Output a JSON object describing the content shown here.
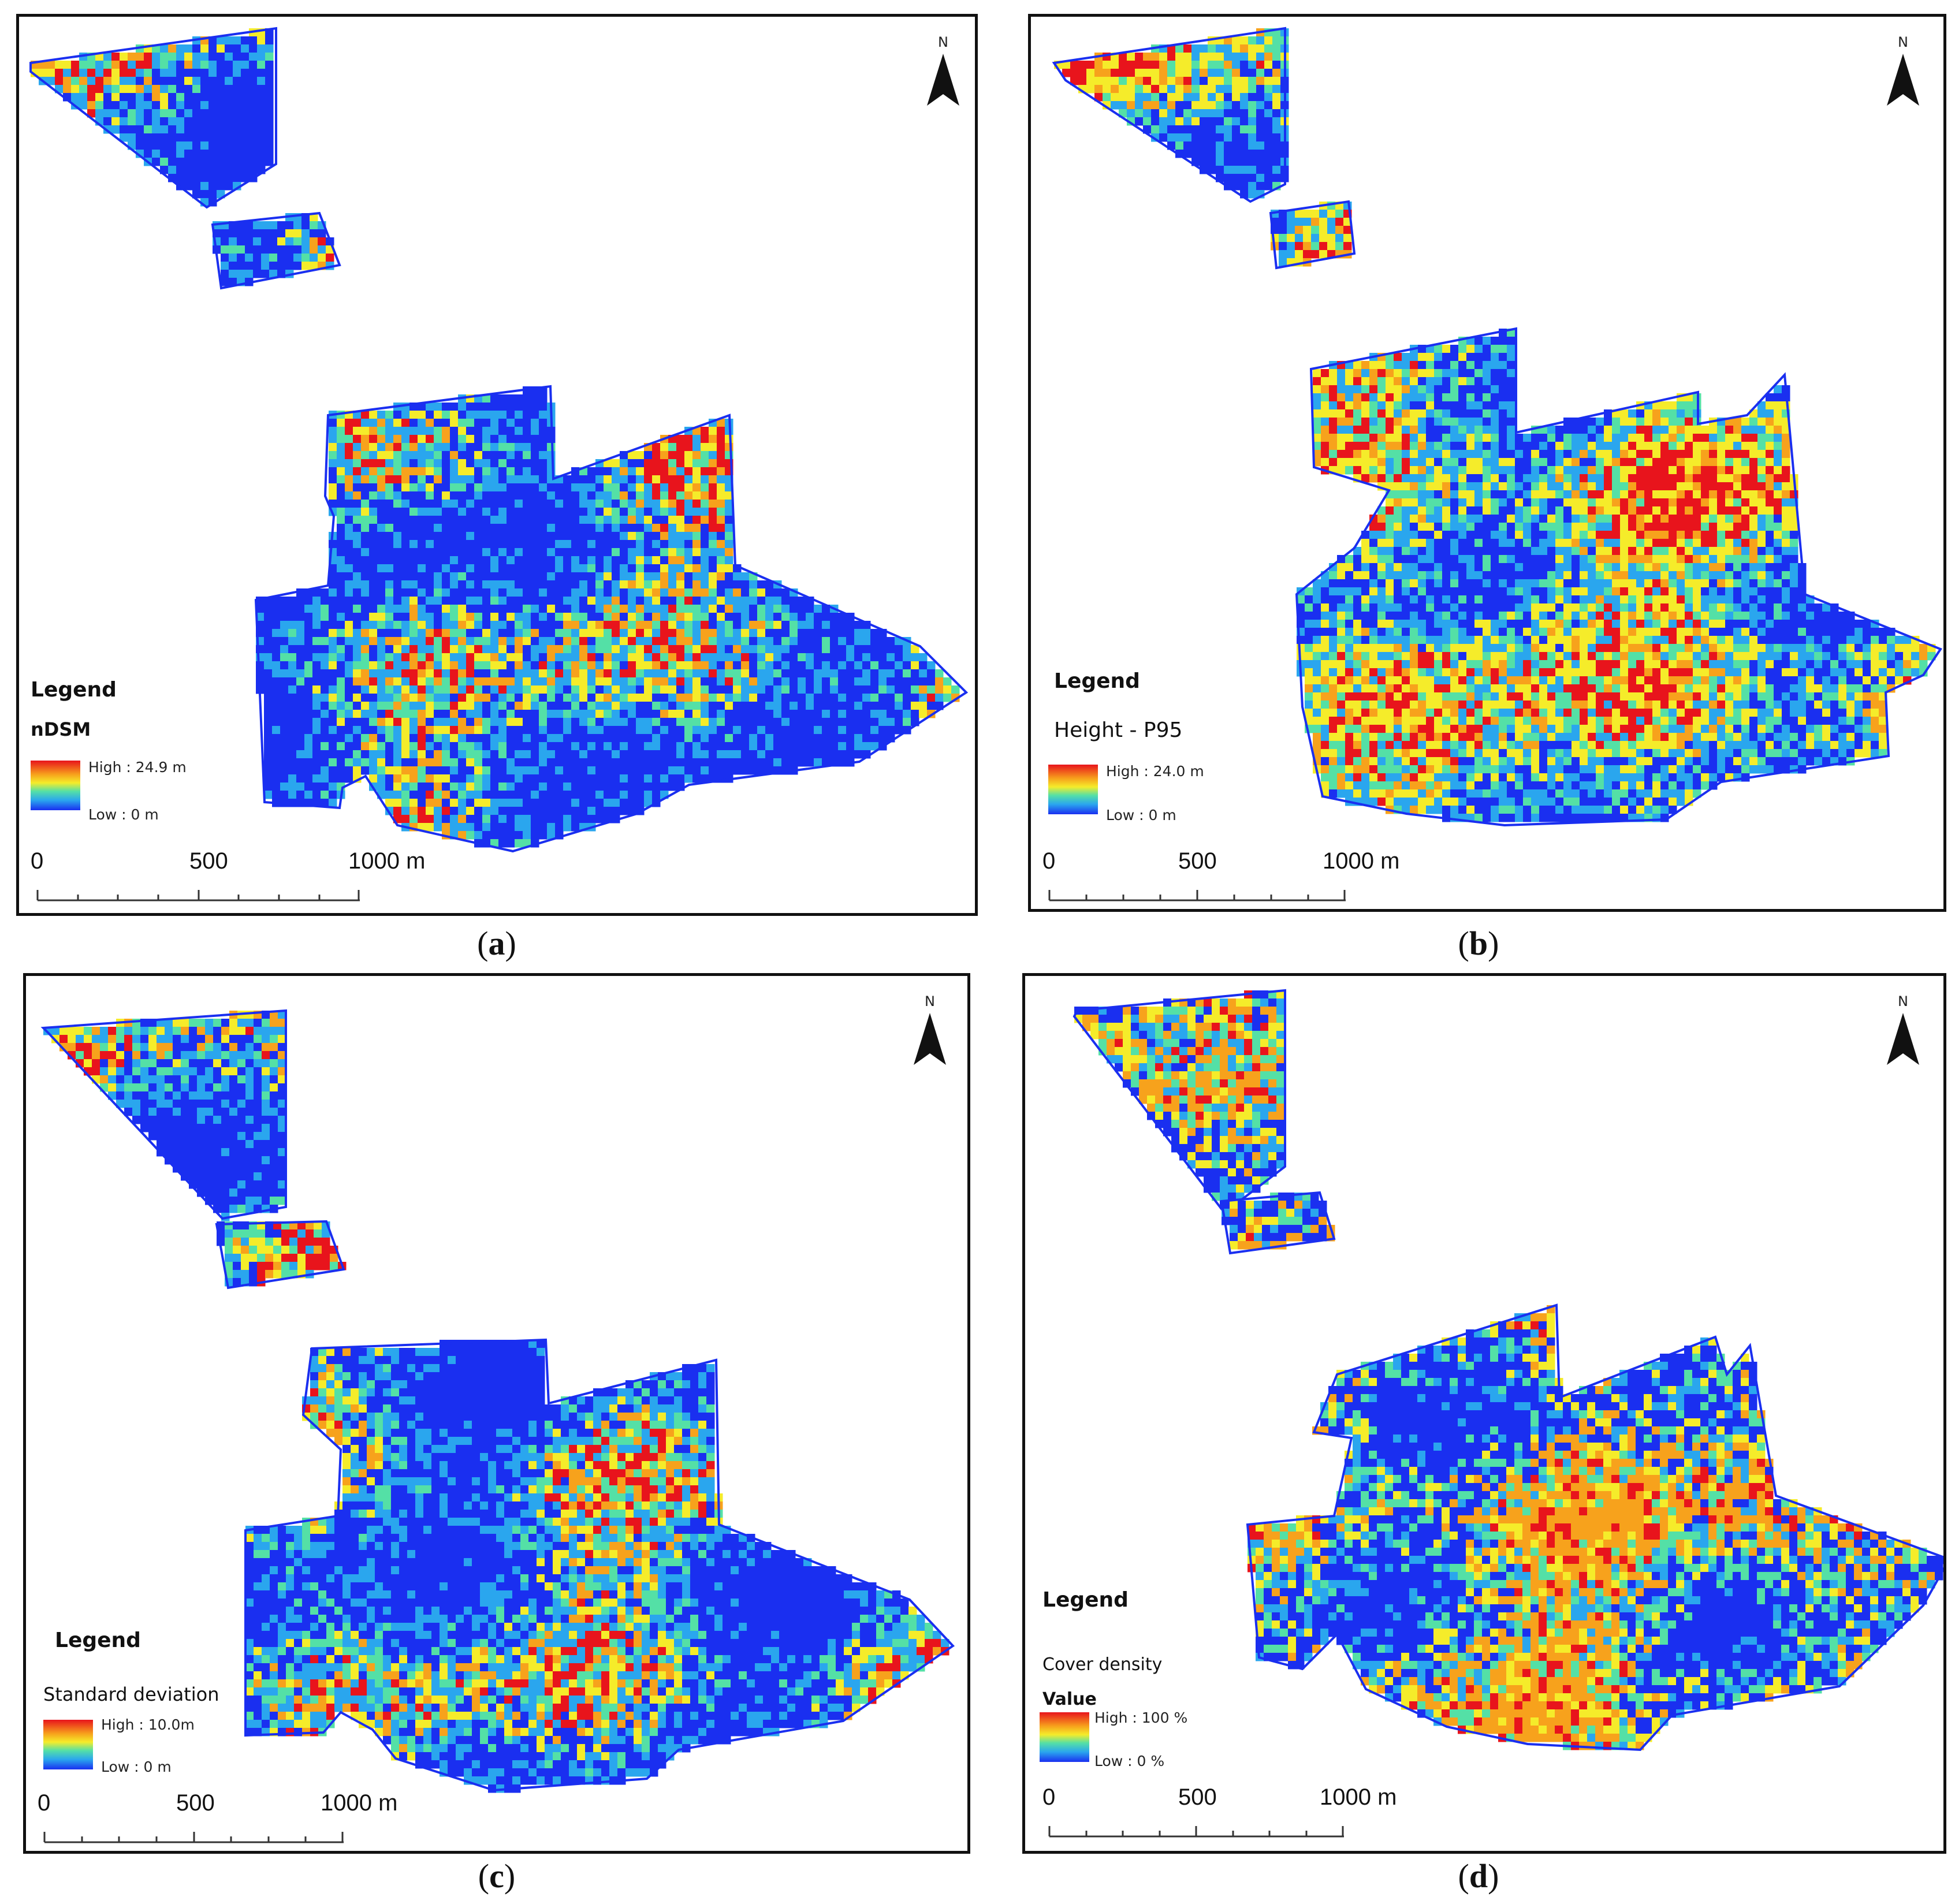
{
  "panels": [
    {
      "id": "a",
      "caption": "a",
      "legend_title": "Legend",
      "layer": "nDSM",
      "value_label": "",
      "high": "High : 24.9 m",
      "low": "Low : 0 m",
      "scale": [
        "0",
        "500",
        "1000 m"
      ],
      "north": "N",
      "palette": "mixed"
    },
    {
      "id": "b",
      "caption": "b",
      "legend_title": "Legend",
      "layer": "Height - P95",
      "value_label": "",
      "high": "High : 24.0 m",
      "low": "Low : 0 m",
      "scale": [
        "0",
        "500",
        "1000 m"
      ],
      "north": "N",
      "palette": "warm"
    },
    {
      "id": "c",
      "caption": "c",
      "legend_title": "Legend",
      "layer": "Standard deviation",
      "value_label": "",
      "high": "High : 10.0m",
      "low": "Low : 0 m",
      "scale": [
        "0",
        "500",
        "1000 m"
      ],
      "north": "N",
      "palette": "mixed"
    },
    {
      "id": "d",
      "caption": "d",
      "legend_title": "Legend",
      "layer": "Cover density",
      "value_label": "Value",
      "high": "High : 100 %",
      "low": "Low : 0 %",
      "scale": [
        "0",
        "500",
        "1000 m"
      ],
      "north": "N",
      "palette": "orange"
    }
  ],
  "colors": {
    "low": "#1a2ff0",
    "mid_low": "#2aa6ee",
    "mid": "#54e0a6",
    "mid_high": "#f5ec2a",
    "high_mid": "#f7a21c",
    "high": "#e8141c"
  }
}
